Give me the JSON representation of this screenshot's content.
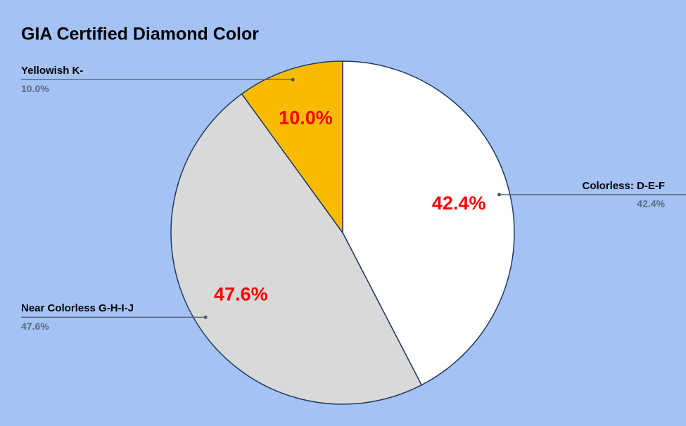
{
  "chart_data": {
    "type": "pie",
    "title": "GIA Certified Diamond Color",
    "categories": [
      "Colorless: D-E-F",
      "Near Colorless G-H-I-J",
      "Yellowish K-"
    ],
    "values": [
      42.4,
      47.6,
      10
    ],
    "value_labels": [
      "42.4%",
      "47.6%",
      "10.0%"
    ],
    "colors": [
      "#ffffff",
      "#d9d9d9",
      "#f9bb00"
    ]
  }
}
